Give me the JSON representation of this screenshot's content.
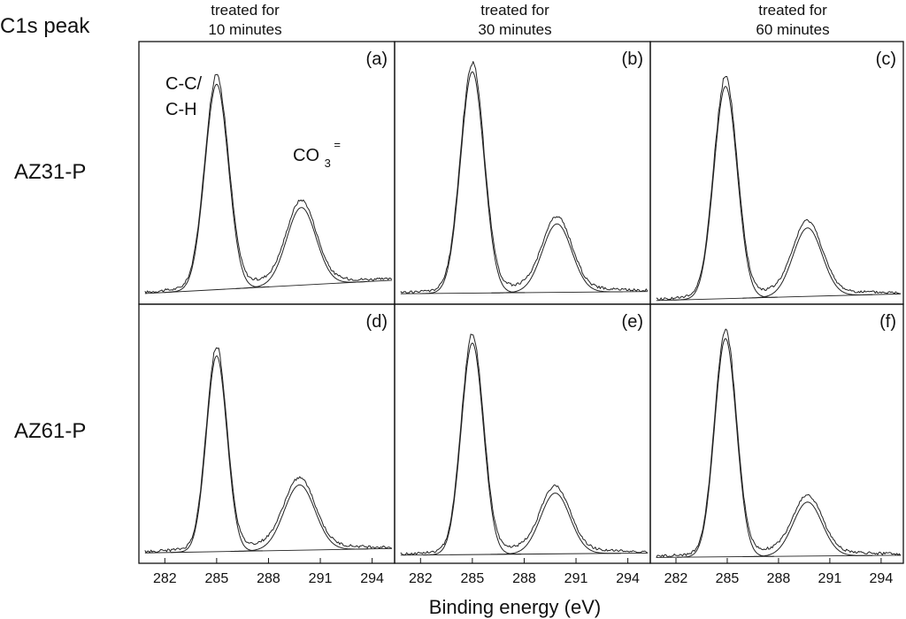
{
  "figure": {
    "corner_label": "C1s peak",
    "xlabel": "Binding energy (eV)",
    "column_titles": [
      [
        "treated for",
        "10 minutes"
      ],
      [
        "treated for",
        "30 minutes"
      ],
      [
        "treated for",
        "60 minutes"
      ]
    ],
    "row_labels": [
      "AZ31-P",
      "AZ61-P"
    ],
    "peak_label_cc": [
      "C-C/",
      "C-H"
    ],
    "peak_label_co3": {
      "base": "CO",
      "sub": "3",
      "sup": "="
    },
    "colors": {
      "line": "#222222",
      "frame": "#111111",
      "background": "#ffffff"
    }
  },
  "chart_data": [
    {
      "type": "line",
      "panel": "(a)",
      "sample": "AZ31-P",
      "treatment": "treated for 10 minutes",
      "xlim": [
        280.5,
        295.3
      ],
      "xticks": [
        282,
        285,
        288,
        291,
        294
      ],
      "ylim": [
        0,
        1.12
      ],
      "peaks": [
        {
          "name": "C-C/C-H",
          "center": 285.0,
          "height": 0.9,
          "fwhm": 1.6
        },
        {
          "name": "CO3=",
          "center": 289.9,
          "height": 0.34,
          "fwhm": 2.0
        }
      ],
      "background": [
        0.03,
        0.09
      ],
      "data_offset": 0.03
    },
    {
      "type": "line",
      "panel": "(b)",
      "sample": "AZ31-P",
      "treatment": "treated for 30 minutes",
      "xlim": [
        280.5,
        295.3
      ],
      "xticks": [
        282,
        285,
        288,
        291,
        294
      ],
      "ylim": [
        0,
        1.12
      ],
      "peaks": [
        {
          "name": "C-C/C-H",
          "center": 285.0,
          "height": 0.97,
          "fwhm": 1.6
        },
        {
          "name": "CO3=",
          "center": 289.9,
          "height": 0.3,
          "fwhm": 2.0
        }
      ],
      "background": [
        0.03,
        0.04
      ],
      "data_offset": 0.03
    },
    {
      "type": "line",
      "panel": "(c)",
      "sample": "AZ31-P",
      "treatment": "treated for 60 minutes",
      "xlim": [
        280.5,
        295.3
      ],
      "xticks": [
        282,
        285,
        288,
        291,
        294
      ],
      "ylim": [
        0,
        1.12
      ],
      "peaks": [
        {
          "name": "C-C/C-H",
          "center": 284.9,
          "height": 0.93,
          "fwhm": 1.6
        },
        {
          "name": "CO3=",
          "center": 289.7,
          "height": 0.3,
          "fwhm": 2.0
        }
      ],
      "background": [
        0.0,
        0.03
      ],
      "data_offset": 0.03
    },
    {
      "type": "line",
      "panel": "(d)",
      "sample": "AZ61-P",
      "treatment": "treated for 10 minutes",
      "xlim": [
        280.5,
        295.3
      ],
      "xticks": [
        282,
        285,
        288,
        291,
        294
      ],
      "ylim": [
        0,
        1.12
      ],
      "peaks": [
        {
          "name": "C-C/C-H",
          "center": 285.0,
          "height": 0.87,
          "fwhm": 1.4
        },
        {
          "name": "CO3=",
          "center": 289.8,
          "height": 0.29,
          "fwhm": 2.1
        }
      ],
      "background": [
        0.03,
        0.05
      ],
      "data_offset": 0.03
    },
    {
      "type": "line",
      "panel": "(e)",
      "sample": "AZ61-P",
      "treatment": "treated for 30 minutes",
      "xlim": [
        280.5,
        295.3
      ],
      "xticks": [
        282,
        285,
        288,
        291,
        294
      ],
      "ylim": [
        0,
        1.12
      ],
      "peaks": [
        {
          "name": "C-C/C-H",
          "center": 285.0,
          "height": 0.94,
          "fwhm": 1.5
        },
        {
          "name": "CO3=",
          "center": 289.8,
          "height": 0.27,
          "fwhm": 2.0
        }
      ],
      "background": [
        0.02,
        0.03
      ],
      "data_offset": 0.03
    },
    {
      "type": "line",
      "panel": "(f)",
      "sample": "AZ61-P",
      "treatment": "treated for 60 minutes",
      "xlim": [
        280.5,
        295.3
      ],
      "xticks": [
        282,
        285,
        288,
        291,
        294
      ],
      "ylim": [
        0,
        1.12
      ],
      "peaks": [
        {
          "name": "C-C/C-H",
          "center": 284.9,
          "height": 0.97,
          "fwhm": 1.5
        },
        {
          "name": "CO3=",
          "center": 289.7,
          "height": 0.24,
          "fwhm": 2.0
        }
      ],
      "background": [
        0.01,
        0.02
      ],
      "data_offset": 0.03
    }
  ]
}
